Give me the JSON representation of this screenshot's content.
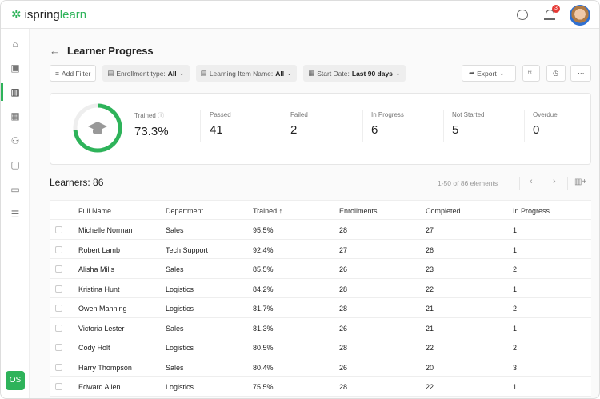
{
  "app": {
    "logo_prefix": "ispring",
    "logo_suffix": "learn",
    "notification_count": "3",
    "user_initials": "OS"
  },
  "page": {
    "title": "Learner Progress"
  },
  "filters": {
    "add_filter": "Add Filter",
    "enrollment_label": "Enrollment type:",
    "enrollment_value": "All",
    "item_label": "Learning Item Name:",
    "item_value": "All",
    "date_label": "Start Date:",
    "date_value": "Last 90 days",
    "export": "Export"
  },
  "stats": {
    "progress_percent": 73.3,
    "trained_label": "Trained",
    "trained_value": "73.3%",
    "items": [
      {
        "label": "Passed",
        "value": "41"
      },
      {
        "label": "Failed",
        "value": "2"
      },
      {
        "label": "In Progress",
        "value": "6"
      },
      {
        "label": "Not Started",
        "value": "5"
      },
      {
        "label": "Overdue",
        "value": "0"
      }
    ]
  },
  "table": {
    "count_label": "Learners: 86",
    "pagination": "1-50 of 86 elements",
    "headers": [
      "Full Name",
      "Department",
      "Trained ↑",
      "Enrollments",
      "Completed",
      "In Progress"
    ],
    "rows": [
      [
        "Michelle Norman",
        "Sales",
        "95.5%",
        "28",
        "27",
        "1"
      ],
      [
        "Robert Lamb",
        "Tech Support",
        "92.4%",
        "27",
        "26",
        "1"
      ],
      [
        "Alisha Mills",
        "Sales",
        "85.5%",
        "26",
        "23",
        "2"
      ],
      [
        "Kristina Hunt",
        "Logistics",
        "84.2%",
        "28",
        "22",
        "1"
      ],
      [
        "Owen Manning",
        "Logistics",
        "81.7%",
        "28",
        "21",
        "2"
      ],
      [
        "Victoria Lester",
        "Sales",
        "81.3%",
        "26",
        "21",
        "1"
      ],
      [
        "Cody Holt",
        "Logistics",
        "80.5%",
        "28",
        "22",
        "2"
      ],
      [
        "Harry Thompson",
        "Sales",
        "80.4%",
        "26",
        "20",
        "3"
      ],
      [
        "Edward Allen",
        "Logistics",
        "75.5%",
        "28",
        "22",
        "1"
      ]
    ]
  }
}
